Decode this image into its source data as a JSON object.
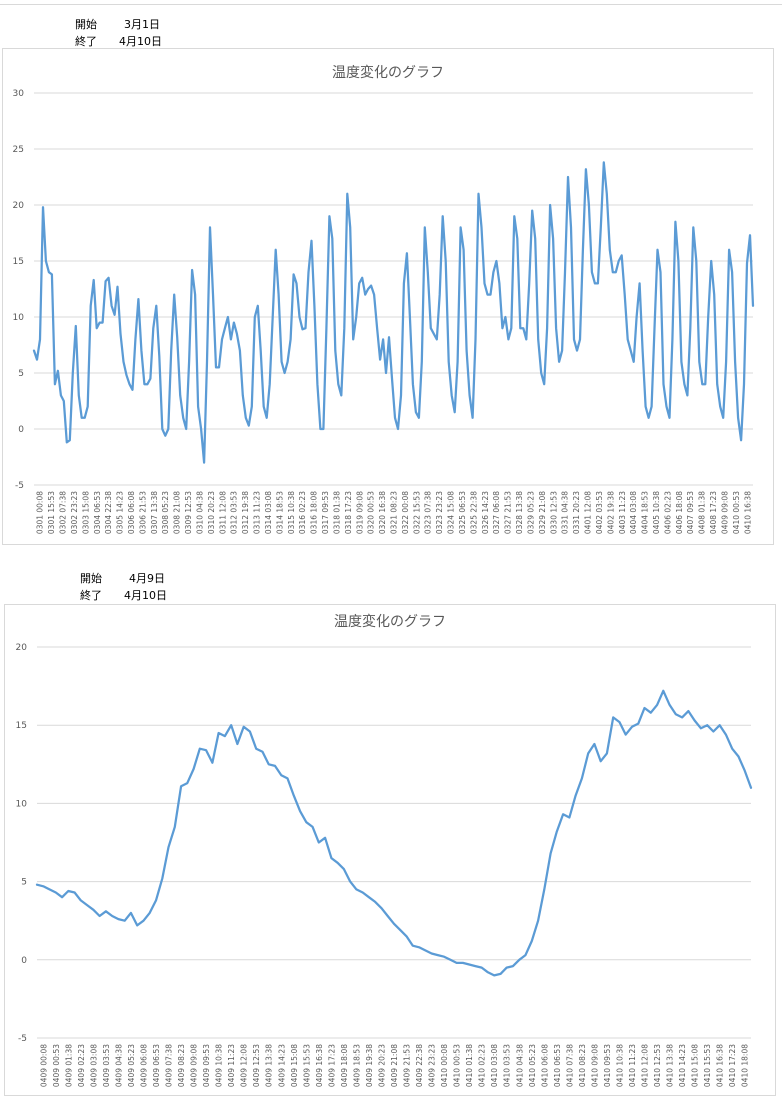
{
  "header1": {
    "start_label": "開始",
    "start_value": "3月1日",
    "end_label": "終了",
    "end_value": "4月10日"
  },
  "header2": {
    "start_label": "開始",
    "start_value": "4月9日",
    "end_label": "終了",
    "end_value": "4月10日"
  },
  "chart_data": [
    {
      "type": "line",
      "title": "温度変化のグラフ",
      "xlabel": "",
      "ylabel": "",
      "ylim": [
        -5,
        30
      ],
      "y_ticks": [
        -5,
        0,
        5,
        10,
        15,
        20,
        25,
        30
      ],
      "grid": true,
      "line_color": "#5b9bd5",
      "x_tick_labels": [
        "0301 00:08",
        "0301 15:53",
        "0302 07:38",
        "0302 23:23",
        "0303 15:08",
        "0304 06:53",
        "0304 22:38",
        "0305 14:23",
        "0306 06:08",
        "0306 21:53",
        "0307 13:38",
        "0308 05:23",
        "0308 21:08",
        "0309 12:53",
        "0310 04:38",
        "0310 20:23",
        "0311 12:08",
        "0312 03:53",
        "0312 19:38",
        "0313 11:23",
        "0314 03:08",
        "0314 18:53",
        "0315 10:38",
        "0316 02:23",
        "0316 18:08",
        "0317 09:53",
        "0318 01:38",
        "0318 17:23",
        "0319 09:08",
        "0320 00:53",
        "0320 16:38",
        "0321 08:23",
        "0322 00:08",
        "0322 15:53",
        "0323 07:38",
        "0323 23:23",
        "0324 15:08",
        "0325 06:53",
        "0325 22:38",
        "0326 14:23",
        "0327 06:08",
        "0327 21:53",
        "0328 13:38",
        "0329 05:23",
        "0329 21:08",
        "0330 12:53",
        "0331 04:38",
        "0331 20:23",
        "0401 12:08",
        "0402 03:53",
        "0402 19:38",
        "0403 11:23",
        "0404 03:08",
        "0404 18:53",
        "0405 10:38",
        "0406 02:23",
        "0406 18:08",
        "0407 09:53",
        "0408 01:38",
        "0408 17:23",
        "0409 09:08",
        "0410 00:53",
        "0410 16:38"
      ],
      "series": [
        {
          "values": [
            7,
            6.2,
            8,
            19.8,
            15,
            14,
            13.8,
            4,
            5.2,
            3,
            2.5,
            -1.2,
            -1,
            5,
            9.2,
            3,
            1,
            1,
            2,
            11,
            13.3,
            9,
            9.5,
            9.5,
            13.2,
            13.5,
            11,
            10.2,
            12.7,
            8.5,
            6,
            4.8,
            4,
            3.5,
            8,
            11.6,
            7,
            4,
            4,
            4.5,
            9,
            11,
            6.5,
            0,
            -0.6,
            0,
            7,
            12,
            8.2,
            3,
            1,
            0,
            6,
            14.2,
            12,
            2,
            0,
            -3,
            6,
            18,
            12,
            5.5,
            5.5,
            8,
            9,
            10,
            8,
            9.5,
            8.5,
            7,
            3,
            1,
            0.3,
            2,
            10,
            11,
            7,
            2,
            1,
            4,
            10,
            16,
            12,
            6,
            5,
            6,
            8,
            13.8,
            13,
            10,
            8.9,
            9,
            14,
            16.8,
            11,
            4,
            0,
            0,
            9,
            19,
            17,
            7,
            4,
            3,
            9,
            21,
            18,
            8,
            10,
            13,
            13.5,
            12,
            12.5,
            12.8,
            12,
            9,
            6.2,
            8,
            5,
            8.2,
            4.5,
            1,
            0,
            3,
            13,
            15.7,
            10,
            4,
            1.5,
            1,
            6,
            18,
            14,
            9,
            8.5,
            8,
            12,
            19,
            15,
            6,
            3,
            1.5,
            6,
            18,
            16,
            7,
            3,
            1,
            8,
            21,
            18,
            13,
            12,
            12,
            14,
            15,
            13,
            9,
            10,
            8,
            9,
            19,
            17,
            9,
            9,
            8,
            13,
            19.5,
            17,
            8,
            5,
            4,
            9,
            20,
            17,
            9,
            6,
            7,
            14,
            22.5,
            18,
            8,
            7,
            8,
            16,
            23.2,
            20,
            14,
            13,
            13,
            18,
            23.8,
            21,
            16,
            14,
            14,
            15,
            15.5,
            12,
            8,
            7,
            6,
            10,
            13,
            7,
            2,
            1,
            2,
            9,
            16,
            14,
            4,
            2,
            1,
            8,
            18.5,
            15,
            6,
            4,
            3,
            9,
            18,
            15,
            6,
            4,
            4,
            10,
            15,
            12,
            4,
            2,
            1,
            6,
            16,
            14,
            6,
            1,
            -1,
            4,
            14.8,
            17.3,
            11
          ]
        }
      ]
    },
    {
      "type": "line",
      "title": "温度変化のグラフ",
      "xlabel": "",
      "ylabel": "",
      "ylim": [
        -5,
        20
      ],
      "y_ticks": [
        -5,
        0,
        5,
        10,
        15,
        20
      ],
      "grid": true,
      "line_color": "#5b9bd5",
      "x_tick_labels": [
        "0409 00:08",
        "0409 00:53",
        "0409 01:38",
        "0409 02:23",
        "0409 03:08",
        "0409 03:53",
        "0409 04:38",
        "0409 05:23",
        "0409 06:08",
        "0409 06:53",
        "0409 07:38",
        "0409 08:23",
        "0409 09:08",
        "0409 09:53",
        "0409 10:38",
        "0409 11:23",
        "0409 12:08",
        "0409 12:53",
        "0409 13:38",
        "0409 14:23",
        "0409 15:08",
        "0409 15:53",
        "0409 16:38",
        "0409 17:23",
        "0409 18:08",
        "0409 18:53",
        "0409 19:38",
        "0409 20:23",
        "0409 21:08",
        "0409 21:53",
        "0409 22:38",
        "0409 23:23",
        "0410 00:08",
        "0410 00:53",
        "0410 01:38",
        "0410 02:23",
        "0410 03:08",
        "0410 03:53",
        "0410 04:38",
        "0410 05:23",
        "0410 06:08",
        "0410 06:53",
        "0410 07:38",
        "0410 08:23",
        "0410 09:08",
        "0410 09:53",
        "0410 10:38",
        "0410 11:23",
        "0410 12:08",
        "0410 12:53",
        "0410 13:38",
        "0410 14:23",
        "0410 15:08",
        "0410 15:53",
        "0410 16:38",
        "0410 17:23",
        "0410 18:08"
      ],
      "series": [
        {
          "values": [
            4.8,
            4.7,
            4.5,
            4.3,
            4.0,
            4.4,
            4.3,
            3.8,
            3.5,
            3.2,
            2.8,
            3.1,
            2.8,
            2.6,
            2.5,
            3.0,
            2.2,
            2.5,
            3.0,
            3.8,
            5.2,
            7.2,
            8.5,
            11.1,
            11.3,
            12.2,
            13.5,
            13.4,
            12.6,
            14.5,
            14.3,
            15.0,
            13.8,
            14.9,
            14.6,
            13.5,
            13.3,
            12.5,
            12.4,
            11.8,
            11.6,
            10.5,
            9.5,
            8.8,
            8.5,
            7.5,
            7.8,
            6.5,
            6.2,
            5.8,
            5.0,
            4.5,
            4.3,
            4.0,
            3.7,
            3.3,
            2.8,
            2.3,
            1.9,
            1.5,
            0.9,
            0.8,
            0.6,
            0.4,
            0.3,
            0.2,
            0.0,
            -0.2,
            -0.2,
            -0.3,
            -0.4,
            -0.5,
            -0.8,
            -1.0,
            -0.9,
            -0.5,
            -0.4,
            0.0,
            0.3,
            1.2,
            2.5,
            4.5,
            6.8,
            8.2,
            9.3,
            9.1,
            10.5,
            11.6,
            13.2,
            13.8,
            12.7,
            13.2,
            15.5,
            15.2,
            14.4,
            14.9,
            15.1,
            16.1,
            15.8,
            16.3,
            17.2,
            16.3,
            15.7,
            15.5,
            15.9,
            15.3,
            14.8,
            15.0,
            14.6,
            15.0,
            14.4,
            13.5,
            13.0,
            12.1,
            11.0
          ]
        }
      ]
    }
  ]
}
